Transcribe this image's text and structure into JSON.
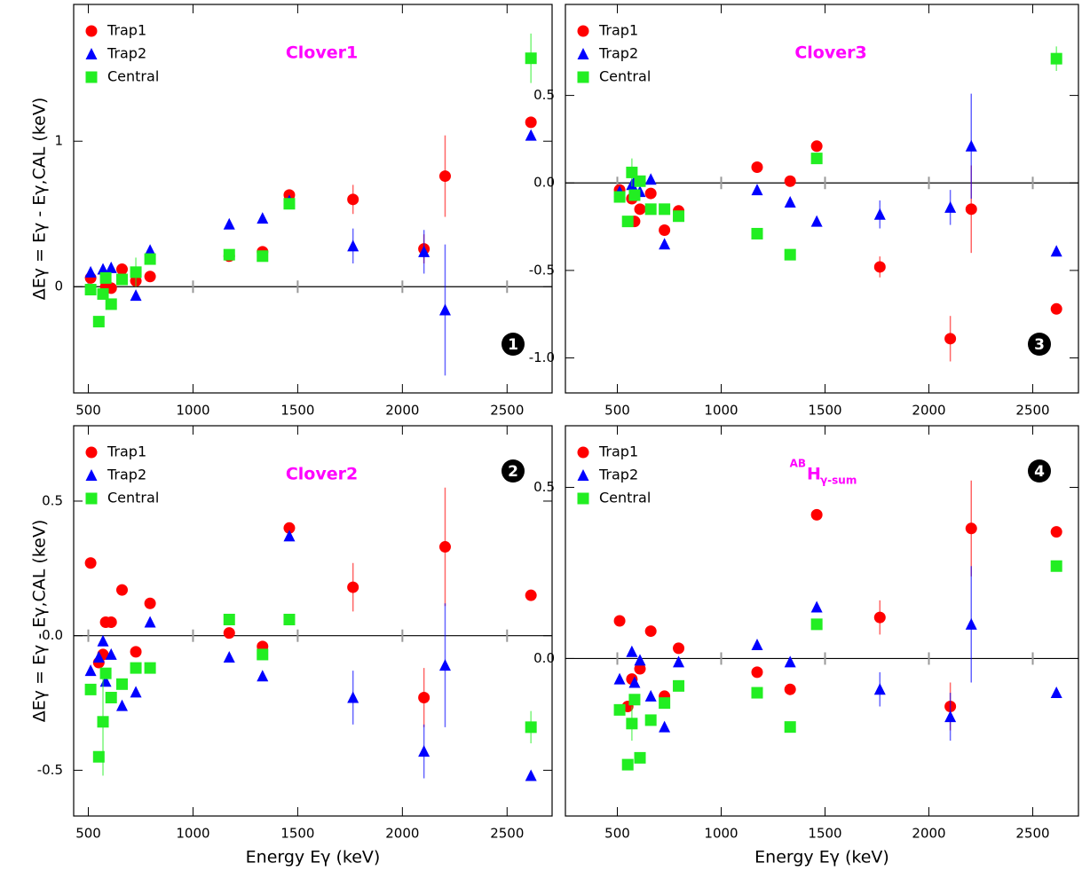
{
  "chart_data": [
    {
      "type": "scatter",
      "title": "Clover1",
      "badge": "1",
      "badge_corner": "bottom-right",
      "ylabel": "ΔEγ = Eγ - Eγ,CAL (keV)",
      "x": [
        511,
        550,
        570,
        583,
        609,
        661,
        727,
        795,
        1173,
        1332,
        1460,
        1764,
        2103,
        2204,
        2614
      ],
      "xlim": [
        430,
        2715
      ],
      "xticks": [
        500,
        1000,
        1500,
        2000,
        2500
      ],
      "ylim": [
        -0.73,
        1.94
      ],
      "yticks": [
        0,
        1
      ],
      "series": [
        {
          "name": "Trap1",
          "color": "#ff0000",
          "marker": "circle",
          "values": [
            0.06,
            null,
            null,
            0.0,
            -0.01,
            0.12,
            0.04,
            0.07,
            0.21,
            0.24,
            0.63,
            0.6,
            0.26,
            0.76,
            1.13
          ],
          "errors": [
            null,
            null,
            null,
            null,
            null,
            null,
            null,
            null,
            null,
            null,
            null,
            0.1,
            0.1,
            0.28,
            null
          ]
        },
        {
          "name": "Trap2",
          "color": "#0000ff",
          "marker": "triangle",
          "values": [
            0.1,
            null,
            0.12,
            null,
            0.13,
            null,
            -0.06,
            0.25,
            0.43,
            0.47,
            0.59,
            0.28,
            0.24,
            -0.16,
            1.04
          ],
          "errors": [
            null,
            null,
            null,
            null,
            null,
            null,
            null,
            null,
            null,
            null,
            null,
            0.12,
            0.15,
            0.45,
            null
          ]
        },
        {
          "name": "Central",
          "color": "#22ee22",
          "marker": "square",
          "values": [
            -0.02,
            -0.24,
            -0.05,
            0.06,
            -0.12,
            0.05,
            0.1,
            0.19,
            0.22,
            0.21,
            0.57,
            null,
            null,
            null,
            1.57
          ],
          "errors": [
            null,
            null,
            null,
            null,
            null,
            null,
            0.1,
            null,
            null,
            null,
            null,
            null,
            null,
            null,
            0.17
          ]
        }
      ]
    },
    {
      "type": "scatter",
      "title": "Clover3",
      "badge": "3",
      "badge_corner": "bottom-right",
      "x": [
        511,
        550,
        570,
        583,
        609,
        661,
        727,
        795,
        1173,
        1332,
        1460,
        1764,
        2103,
        2204,
        2614
      ],
      "xlim": [
        250,
        2720
      ],
      "xticks": [
        500,
        1000,
        1500,
        2000,
        2500
      ],
      "ylim": [
        -1.2,
        1.02
      ],
      "yticks": [
        0.5,
        {
          "value": 0,
          "label": "0.0"
        },
        -0.5,
        {
          "value": -1,
          "label": "-1.0"
        }
      ],
      "series": [
        {
          "name": "Trap1",
          "color": "#ff0000",
          "marker": "circle",
          "values": [
            -0.04,
            null,
            -0.09,
            -0.22,
            -0.15,
            -0.06,
            -0.27,
            -0.16,
            0.09,
            0.01,
            0.21,
            -0.48,
            -0.89,
            -0.15,
            -0.72
          ],
          "errors": [
            null,
            null,
            null,
            null,
            null,
            null,
            null,
            null,
            null,
            null,
            null,
            0.06,
            0.13,
            0.25,
            null
          ]
        },
        {
          "name": "Trap2",
          "color": "#0000ff",
          "marker": "triangle",
          "values": [
            -0.05,
            null,
            -0.01,
            0.01,
            -0.05,
            0.02,
            -0.35,
            null,
            -0.04,
            -0.11,
            -0.22,
            -0.18,
            -0.14,
            0.21,
            -0.39
          ],
          "errors": [
            null,
            null,
            null,
            null,
            null,
            null,
            null,
            null,
            null,
            null,
            null,
            0.08,
            0.1,
            0.3,
            null
          ]
        },
        {
          "name": "Central",
          "color": "#22ee22",
          "marker": "square",
          "values": [
            -0.08,
            -0.22,
            0.06,
            -0.07,
            0.01,
            -0.15,
            -0.15,
            -0.19,
            -0.29,
            -0.41,
            0.14,
            null,
            null,
            null,
            0.71
          ],
          "errors": [
            null,
            null,
            0.08,
            null,
            null,
            null,
            null,
            null,
            null,
            null,
            null,
            null,
            null,
            null,
            0.07
          ]
        }
      ]
    },
    {
      "type": "scatter",
      "title": "Clover2",
      "badge": "2",
      "badge_corner": "top-right",
      "ylabel": "ΔEγ = Eγ - Eγ,CAL (keV)",
      "xlabel": "Energy Eγ (keV)",
      "x": [
        511,
        550,
        570,
        583,
        609,
        661,
        727,
        795,
        1173,
        1332,
        1460,
        1764,
        2103,
        2204,
        2614
      ],
      "xlim": [
        430,
        2715
      ],
      "xticks": [
        500,
        1000,
        1500,
        2000,
        2500
      ],
      "ylim": [
        -0.67,
        0.78
      ],
      "yticks": [
        0.5,
        {
          "value": 0,
          "label": "0.0"
        },
        -0.5
      ],
      "series": [
        {
          "name": "Trap1",
          "color": "#ff0000",
          "marker": "circle",
          "values": [
            0.27,
            -0.1,
            -0.07,
            0.05,
            0.05,
            0.17,
            -0.06,
            0.12,
            0.01,
            -0.04,
            0.4,
            0.18,
            -0.23,
            0.33,
            0.15
          ],
          "errors": [
            null,
            null,
            null,
            null,
            null,
            null,
            null,
            null,
            null,
            null,
            null,
            0.09,
            0.11,
            0.22,
            null
          ]
        },
        {
          "name": "Trap2",
          "color": "#0000ff",
          "marker": "triangle",
          "values": [
            -0.13,
            -0.08,
            -0.02,
            -0.17,
            -0.07,
            -0.26,
            -0.21,
            0.05,
            -0.08,
            -0.15,
            0.37,
            -0.23,
            -0.43,
            -0.11,
            -0.52
          ],
          "errors": [
            null,
            null,
            null,
            null,
            null,
            null,
            null,
            null,
            null,
            null,
            null,
            0.1,
            0.1,
            0.23,
            null
          ]
        },
        {
          "name": "Central",
          "color": "#22ee22",
          "marker": "square",
          "values": [
            -0.2,
            -0.45,
            -0.32,
            -0.14,
            -0.23,
            -0.18,
            -0.12,
            -0.12,
            0.06,
            -0.07,
            0.06,
            null,
            null,
            null,
            -0.34
          ],
          "errors": [
            null,
            null,
            0.2,
            null,
            null,
            null,
            null,
            null,
            null,
            null,
            null,
            null,
            null,
            null,
            0.06
          ]
        }
      ]
    },
    {
      "type": "scatter",
      "title_sup": "AB",
      "title": "H",
      "title_sub": "γ-sum",
      "badge": "4",
      "badge_corner": "top-right",
      "xlabel": "Energy Eγ (keV)",
      "x": [
        511,
        550,
        570,
        583,
        609,
        661,
        727,
        795,
        1173,
        1332,
        1460,
        1764,
        2103,
        2204,
        2614
      ],
      "xlim": [
        250,
        2720
      ],
      "xticks": [
        500,
        1000,
        1500,
        2000,
        2500
      ],
      "ylim": [
        -0.46,
        0.68
      ],
      "yticks": [
        0.5,
        {
          "value": 0,
          "label": "0.0"
        }
      ],
      "series": [
        {
          "name": "Trap1",
          "color": "#ff0000",
          "marker": "circle",
          "values": [
            0.11,
            -0.14,
            -0.06,
            null,
            -0.03,
            0.08,
            -0.11,
            0.03,
            -0.04,
            -0.09,
            0.42,
            0.12,
            -0.14,
            0.38,
            0.37
          ],
          "errors": [
            null,
            null,
            null,
            null,
            null,
            null,
            null,
            null,
            null,
            null,
            null,
            0.05,
            0.07,
            0.14,
            null
          ]
        },
        {
          "name": "Trap2",
          "color": "#0000ff",
          "marker": "triangle",
          "values": [
            -0.06,
            null,
            0.02,
            -0.07,
            -0.005,
            -0.11,
            -0.2,
            -0.01,
            0.04,
            -0.01,
            0.15,
            -0.09,
            -0.17,
            0.1,
            -0.1
          ],
          "errors": [
            null,
            null,
            null,
            null,
            null,
            null,
            null,
            null,
            null,
            null,
            null,
            0.05,
            0.07,
            0.17,
            null
          ]
        },
        {
          "name": "Central",
          "color": "#22ee22",
          "marker": "square",
          "values": [
            -0.15,
            -0.31,
            -0.19,
            -0.12,
            -0.29,
            -0.18,
            -0.13,
            -0.08,
            -0.1,
            -0.2,
            0.1,
            null,
            null,
            null,
            0.27
          ],
          "errors": [
            null,
            null,
            0.05,
            null,
            null,
            null,
            null,
            null,
            null,
            null,
            null,
            null,
            null,
            null,
            null
          ]
        }
      ]
    }
  ]
}
